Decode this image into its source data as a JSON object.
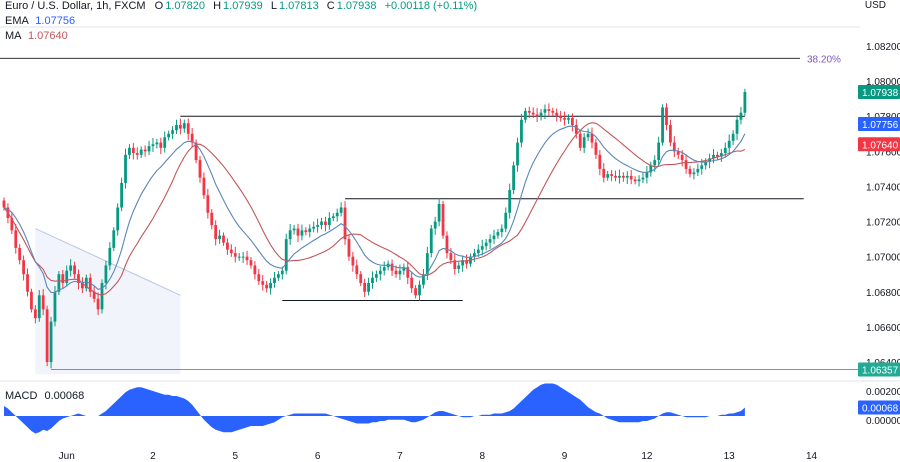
{
  "header": {
    "symbol": "Euro / U.S. Dollar, 1h, FXCM",
    "o_label": "O",
    "o": "1.07820",
    "h_label": "H",
    "h": "1.07939",
    "l_label": "L",
    "l": "1.07813",
    "c_label": "C",
    "c": "1.07938",
    "change": "+0.00118 (+0.11%)",
    "ema_label": "EMA",
    "ema": "1.07756",
    "ma_label": "MA",
    "ma": "1.07640"
  },
  "axis_currency": "USD",
  "fib_label": "38.20%",
  "macd_label": "MACD",
  "macd_value": "0.00068",
  "colors": {
    "up": "#089981",
    "down": "#f23645",
    "ema": "#5b86b8",
    "ma": "#c2575a",
    "macd": "#2962ff",
    "price_badge": "#089981",
    "ema_badge": "#2962ff",
    "ma_badge": "#f23645",
    "low_badge": "#22ab94",
    "fib": "#7e57c2"
  },
  "chart_data": {
    "type": "candlestick",
    "price_axis": [
      "1.08200",
      "1.08000",
      "1.07800",
      "1.07600",
      "1.07400",
      "1.07200",
      "1.07000",
      "1.06800",
      "1.06600",
      "1.06400"
    ],
    "ylim": [
      1.0628,
      1.0832
    ],
    "x_ticks": [
      {
        "label": "Jun",
        "i": 16
      },
      {
        "label": "2",
        "i": 38
      },
      {
        "label": "5",
        "i": 59
      },
      {
        "label": "6",
        "i": 80
      },
      {
        "label": "7",
        "i": 101
      },
      {
        "label": "8",
        "i": 122
      },
      {
        "label": "9",
        "i": 143
      },
      {
        "label": "12",
        "i": 164
      },
      {
        "label": "13",
        "i": 185
      },
      {
        "label": "14",
        "i": 206
      }
    ],
    "macd_axis": [
      "0.00200",
      "0.00000"
    ],
    "badges": [
      {
        "label": "1.07938",
        "value": 1.07938,
        "kind": "price"
      },
      {
        "label": "1.07756",
        "value": 1.07756,
        "kind": "ema"
      },
      {
        "label": "1.07640",
        "value": 1.0764,
        "kind": "ma"
      },
      {
        "label": "1.06357",
        "value": 1.06357,
        "kind": "low"
      },
      {
        "label": "0.00068",
        "value": 0.00068,
        "kind": "macd"
      }
    ],
    "fib_level": {
      "label": "38.20%",
      "value": 1.0813
    },
    "support_resistance": [
      {
        "value": 1.078,
        "from": 45,
        "to": 189
      },
      {
        "value": 1.0733,
        "from": 87,
        "to": 204
      },
      {
        "value": 1.0675,
        "from": 71,
        "to": 117
      },
      {
        "value": 1.06357,
        "from": 12,
        "to": 220
      }
    ],
    "closes": [
      1.0728,
      1.0722,
      1.0715,
      1.0705,
      1.0698,
      1.069,
      1.068,
      1.067,
      1.0665,
      1.0678,
      1.067,
      1.064,
      1.0663,
      1.068,
      1.069,
      1.0685,
      1.0692,
      1.0695,
      1.069,
      1.0685,
      1.0682,
      1.0688,
      1.068,
      1.0676,
      1.067,
      1.0685,
      1.0695,
      1.0705,
      1.0715,
      1.0728,
      1.0742,
      1.0758,
      1.0762,
      1.0759,
      1.0758,
      1.0761,
      1.076,
      1.0763,
      1.0764,
      1.0765,
      1.0762,
      1.0768,
      1.077,
      1.0772,
      1.0775,
      1.0773,
      1.0776,
      1.077,
      1.0765,
      1.0755,
      1.0745,
      1.0735,
      1.0725,
      1.0718,
      1.071,
      1.0712,
      1.0708,
      1.0704,
      1.0702,
      1.07,
      1.07,
      1.07,
      1.0698,
      1.0695,
      1.069,
      1.0686,
      1.0684,
      1.0682,
      1.0685,
      1.0688,
      1.069,
      1.0692,
      1.071,
      1.0715,
      1.0716,
      1.0712,
      1.0715,
      1.0714,
      1.0716,
      1.0717,
      1.0718,
      1.072,
      1.0718,
      1.0722,
      1.0723,
      1.0725,
      1.0728,
      1.071,
      1.07,
      1.0695,
      1.069,
      1.0685,
      1.068,
      1.0685,
      1.0688,
      1.069,
      1.0692,
      1.0694,
      1.0696,
      1.0692,
      1.069,
      1.0692,
      1.0694,
      1.0688,
      1.0682,
      1.0678,
      1.0684,
      1.069,
      1.0702,
      1.0716,
      1.072,
      1.073,
      1.0712,
      1.0702,
      1.0698,
      1.0693,
      1.0695,
      1.0698,
      1.0696,
      1.07,
      1.0702,
      1.0704,
      1.0706,
      1.0708,
      1.071,
      1.0712,
      1.0714,
      1.0716,
      1.0725,
      1.0738,
      1.0752,
      1.0765,
      1.0778,
      1.0783,
      1.0782,
      1.0781,
      1.078,
      1.0782,
      1.0784,
      1.0783,
      1.0782,
      1.078,
      1.0779,
      1.0778,
      1.0779,
      1.0775,
      1.077,
      1.0762,
      1.0768,
      1.077,
      1.0765,
      1.0758,
      1.075,
      1.0745,
      1.0747,
      1.0746,
      1.0745,
      1.0746,
      1.0745,
      1.0746,
      1.0744,
      1.0743,
      1.0744,
      1.0745,
      1.0748,
      1.0752,
      1.0755,
      1.0765,
      1.0785,
      1.0775,
      1.0765,
      1.076,
      1.0758,
      1.0755,
      1.075,
      1.0747,
      1.0748,
      1.075,
      1.0752,
      1.0754,
      1.0756,
      1.0758,
      1.0757,
      1.0759,
      1.0762,
      1.0766,
      1.077,
      1.0778,
      1.0782,
      1.07938
    ],
    "macd": [
      0.0008,
      0.0006,
      0.0003,
      0.0,
      -0.0003,
      -0.0006,
      -0.0009,
      -0.0012,
      -0.0014,
      -0.0013,
      -0.0011,
      -0.0012,
      -0.001,
      -0.0007,
      -0.0004,
      -0.0002,
      -0.0001,
      0.0,
      0.0001,
      0.0002,
      0.0001,
      0.0,
      0.0,
      0.0,
      0.0,
      0.0002,
      0.0004,
      0.0007,
      0.001,
      0.0013,
      0.0016,
      0.0019,
      0.0021,
      0.0022,
      0.0023,
      0.0023,
      0.0022,
      0.0021,
      0.002,
      0.0019,
      0.0018,
      0.0017,
      0.0017,
      0.0016,
      0.0016,
      0.0015,
      0.0014,
      0.0012,
      0.0009,
      0.0005,
      0.0001,
      -0.0003,
      -0.0006,
      -0.0009,
      -0.0011,
      -0.0012,
      -0.0013,
      -0.0013,
      -0.0013,
      -0.0012,
      -0.0011,
      -0.001,
      -0.0009,
      -0.0008,
      -0.0008,
      -0.0008,
      -0.0008,
      -0.0007,
      -0.0006,
      -0.0005,
      -0.0003,
      -0.0001,
      0.0,
      0.0001,
      0.0002,
      0.0002,
      0.0002,
      0.0002,
      0.0002,
      0.0002,
      0.0002,
      0.0002,
      0.0002,
      0.0001,
      0.0,
      -0.0001,
      -0.0002,
      -0.0003,
      -0.0004,
      -0.0005,
      -0.0006,
      -0.0006,
      -0.0006,
      -0.0006,
      -0.0005,
      -0.0005,
      -0.0004,
      -0.0004,
      -0.0003,
      -0.0003,
      -0.0003,
      -0.0003,
      -0.0003,
      -0.0004,
      -0.0005,
      -0.0005,
      -0.0004,
      -0.0003,
      -0.0001,
      0.0001,
      0.0003,
      0.0004,
      0.0004,
      0.0003,
      0.0002,
      0.0001,
      0.0,
      -0.0001,
      -0.0001,
      -0.0001,
      0.0,
      0.0,
      0.0001,
      0.0001,
      0.0001,
      0.0002,
      0.0002,
      0.0002,
      0.0003,
      0.0004,
      0.0006,
      0.0009,
      0.0012,
      0.0015,
      0.0018,
      0.0021,
      0.0023,
      0.0025,
      0.0026,
      0.0026,
      0.0026,
      0.0025,
      0.0023,
      0.0021,
      0.0019,
      0.0017,
      0.0015,
      0.0013,
      0.001,
      0.0007,
      0.0005,
      0.0003,
      0.0002,
      0.0,
      -0.0002,
      -0.0003,
      -0.0004,
      -0.0005,
      -0.0005,
      -0.0005,
      -0.0005,
      -0.0005,
      -0.0005,
      -0.0004,
      -0.0004,
      -0.0003,
      -0.0002,
      0.0,
      0.0002,
      0.0003,
      0.0003,
      0.0002,
      0.0001,
      0.0,
      -0.0001,
      -0.0001,
      -0.0001,
      -0.0001,
      -0.0001,
      -0.0001,
      0.0,
      0.0,
      0.0,
      0.0001,
      0.0001,
      0.0002,
      0.0002,
      0.0003,
      0.0004,
      0.00068
    ]
  }
}
